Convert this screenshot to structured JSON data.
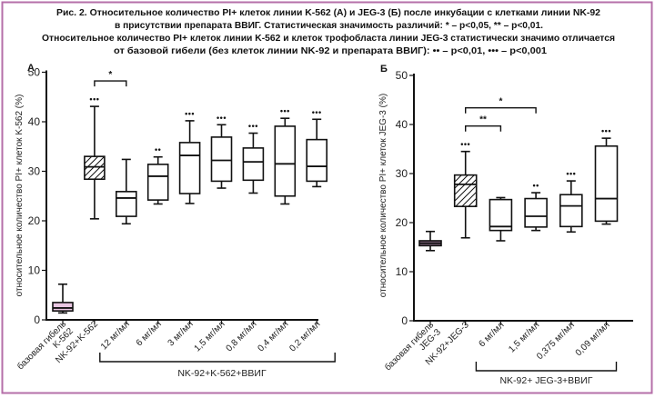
{
  "figure": {
    "title_lines": [
      "Рис. 2. Относительное количество PI+ клеток линии K-562 (А) и JEG-3 (Б) после инкубации с клетками линии NK-92",
      "в присутствии препарата ВВИГ. Статистическая значимость различий: * – p<0,05, ** – p<0,01.",
      "Относительное количество PI+ клеток линии K-562 и клеток трофобласта линии JEG-3 статистически значимо отличается",
      "от базовой гибели (без клеток линии NK-92 и препарата ВВИГ): •• – p<0,01, ••• – p<0,001"
    ],
    "border_color": "#b56fa8"
  },
  "chart_data": [
    {
      "type": "box",
      "panel_label": "А",
      "title": "",
      "xlabel": "",
      "ylabel": "относительное количество PI+ клеток K-562 (%)",
      "ylim": [
        0,
        50
      ],
      "yticks": [
        "0",
        "10",
        "20",
        "30",
        "40",
        "50"
      ],
      "ytick_values": [
        0,
        10,
        20,
        30,
        40,
        50
      ],
      "grid": false,
      "categories": [
        [
          "базовая гибель",
          "K-562"
        ],
        [
          "NK-92+K-562"
        ],
        [
          "12 мг/мл"
        ],
        [
          "6 мг/мл"
        ],
        [
          "3 мг/мл"
        ],
        [
          "1,5 мг/мл"
        ],
        [
          "0,8 мг/мл"
        ],
        [
          "0,4 мг/мл"
        ],
        [
          "0,2 мг/мл"
        ]
      ],
      "boxes": [
        {
          "whisker_low": 1.4,
          "q1": 1.8,
          "median": 2.4,
          "q3": 3.5,
          "whisker_high": 7.2,
          "fill": "#e9c6e2",
          "hatched": false,
          "marker": ""
        },
        {
          "whisker_low": 20.4,
          "q1": 28.4,
          "median": 30.9,
          "q3": 33.0,
          "whisker_high": 43.1,
          "fill": "#ffffff",
          "hatched": true,
          "marker": "•••"
        },
        {
          "whisker_low": 19.4,
          "q1": 20.9,
          "median": 24.6,
          "q3": 25.9,
          "whisker_high": 32.4,
          "fill": "#ffffff",
          "hatched": false,
          "marker": ""
        },
        {
          "whisker_low": 23.4,
          "q1": 24.2,
          "median": 29.0,
          "q3": 31.4,
          "whisker_high": 32.9,
          "fill": "#ffffff",
          "hatched": false,
          "marker": "••"
        },
        {
          "whisker_low": 23.5,
          "q1": 25.5,
          "median": 33.2,
          "q3": 35.8,
          "whisker_high": 40.2,
          "fill": "#ffffff",
          "hatched": false,
          "marker": "•••"
        },
        {
          "whisker_low": 26.6,
          "q1": 28.0,
          "median": 32.2,
          "q3": 36.9,
          "whisker_high": 39.4,
          "fill": "#ffffff",
          "hatched": false,
          "marker": "•••"
        },
        {
          "whisker_low": 25.6,
          "q1": 28.2,
          "median": 31.9,
          "q3": 34.7,
          "whisker_high": 37.7,
          "fill": "#ffffff",
          "hatched": false,
          "marker": "•••"
        },
        {
          "whisker_low": 23.4,
          "q1": 25.0,
          "median": 31.5,
          "q3": 39.1,
          "whisker_high": 40.7,
          "fill": "#ffffff",
          "hatched": false,
          "marker": "•••"
        },
        {
          "whisker_low": 26.9,
          "q1": 28.0,
          "median": 31.0,
          "q3": 36.4,
          "whisker_high": 40.5,
          "fill": "#ffffff",
          "hatched": false,
          "marker": "•••"
        }
      ],
      "comparisons": [
        {
          "from": 1,
          "to": 2,
          "label": "*"
        }
      ],
      "group": {
        "label": "NK-92+K-562+ВВИГ",
        "from": 2,
        "to": 8
      }
    },
    {
      "type": "box",
      "panel_label": "Б",
      "title": "",
      "xlabel": "",
      "ylabel": "относительное количество PI+ клеток JEG-3 (%)",
      "ylim": [
        0,
        50
      ],
      "yticks": [
        "0",
        "10",
        "20",
        "30",
        "40",
        "50"
      ],
      "ytick_values": [
        0,
        10,
        20,
        30,
        40,
        50
      ],
      "grid": false,
      "categories": [
        [
          "базовая гибель",
          "JEG-3"
        ],
        [
          "NK-92+JEG-3"
        ],
        [
          "6 мг/мл"
        ],
        [
          "1,5 мг/мл"
        ],
        [
          "0,375 мг/мл"
        ],
        [
          "0,09 мг/мл"
        ]
      ],
      "boxes": [
        {
          "whisker_low": 14.3,
          "q1": 15.3,
          "median": 15.8,
          "q3": 16.3,
          "whisker_high": 18.2,
          "fill": "#8c6c88",
          "hatched": false,
          "marker": ""
        },
        {
          "whisker_low": 16.9,
          "q1": 23.3,
          "median": 27.8,
          "q3": 29.7,
          "whisker_high": 34.5,
          "fill": "#ffffff",
          "hatched": true,
          "marker": "•••"
        },
        {
          "whisker_low": 16.3,
          "q1": 18.4,
          "median": 19.2,
          "q3": 24.7,
          "whisker_high": 25.1,
          "fill": "#ffffff",
          "hatched": false,
          "marker": ""
        },
        {
          "whisker_low": 18.4,
          "q1": 19.1,
          "median": 21.3,
          "q3": 24.9,
          "whisker_high": 26.1,
          "fill": "#ffffff",
          "hatched": false,
          "marker": "••"
        },
        {
          "whisker_low": 18.1,
          "q1": 19.2,
          "median": 23.4,
          "q3": 25.7,
          "whisker_high": 28.5,
          "fill": "#ffffff",
          "hatched": false,
          "marker": "•••"
        },
        {
          "whisker_low": 19.7,
          "q1": 20.3,
          "median": 24.9,
          "q3": 35.6,
          "whisker_high": 37.2,
          "fill": "#ffffff",
          "hatched": false,
          "marker": "•••"
        }
      ],
      "comparisons": [
        {
          "from": 1,
          "to": 2,
          "label": "**"
        },
        {
          "from": 1,
          "to": 3,
          "label": "*"
        }
      ],
      "group": {
        "label": "NK-92+ JEG-3+ВВИГ",
        "from": 2,
        "to": 5
      }
    }
  ]
}
